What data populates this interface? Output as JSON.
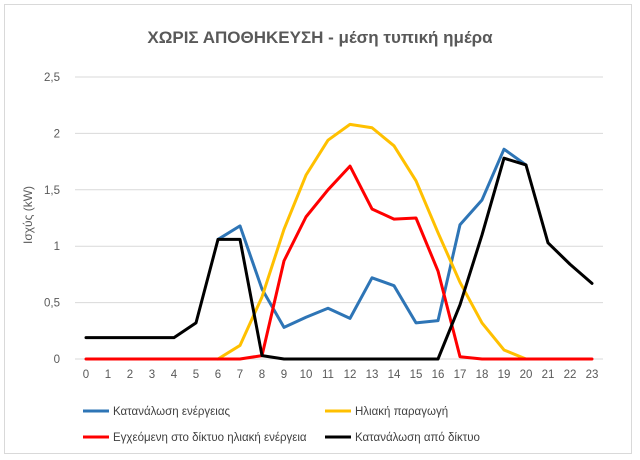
{
  "chart_data": {
    "type": "line",
    "title": "ΧΩΡΙΣ ΑΠΟΘΗΚΕΥΣΗ - μέση τυπική ημέρα",
    "ylabel": "Ισχύς (kW)",
    "xlabel": "",
    "ylim": [
      0,
      2.5
    ],
    "yticks": [
      "0",
      "0,5",
      "1",
      "1,5",
      "2",
      "2,5"
    ],
    "ytick_values": [
      0,
      0.5,
      1,
      1.5,
      2,
      2.5
    ],
    "x": [
      0,
      1,
      2,
      3,
      4,
      5,
      6,
      7,
      8,
      9,
      10,
      11,
      12,
      13,
      14,
      15,
      16,
      17,
      18,
      19,
      20,
      21,
      22,
      23
    ],
    "grid": "horizontal",
    "legend_position": "bottom",
    "series": [
      {
        "name": "Κατανάλωση ενέργειας",
        "color": "#2e75b6",
        "x": [
          6,
          7,
          8,
          9,
          10,
          11,
          12,
          13,
          14,
          15,
          16,
          17,
          18,
          19,
          20
        ],
        "values": [
          1.06,
          1.18,
          0.62,
          0.28,
          0.37,
          0.45,
          0.36,
          0.72,
          0.65,
          0.32,
          0.34,
          1.19,
          1.41,
          1.86,
          1.72
        ]
      },
      {
        "name": "Ηλιακή παραγωγή",
        "color": "#ffc000",
        "x": [
          6,
          7,
          8,
          9,
          10,
          11,
          12,
          13,
          14,
          15,
          16,
          17,
          18,
          19,
          20
        ],
        "values": [
          0.0,
          0.12,
          0.55,
          1.15,
          1.63,
          1.94,
          2.08,
          2.05,
          1.89,
          1.58,
          1.12,
          0.68,
          0.32,
          0.08,
          0.0
        ]
      },
      {
        "name": "Εγχεόμενη στο δίκτυο ηλιακή ενέργεια",
        "color": "#ff0000",
        "x": [
          0,
          1,
          2,
          3,
          4,
          5,
          6,
          7,
          8,
          9,
          10,
          11,
          12,
          13,
          14,
          15,
          16,
          17,
          18,
          19,
          20,
          21,
          22,
          23
        ],
        "values": [
          0,
          0,
          0,
          0,
          0,
          0,
          0,
          0,
          0.03,
          0.87,
          1.26,
          1.5,
          1.71,
          1.33,
          1.24,
          1.25,
          0.78,
          0.02,
          0,
          0,
          0,
          0,
          0,
          0
        ]
      },
      {
        "name": "Κατανάλωση από δίκτυο",
        "color": "#000000",
        "x": [
          0,
          1,
          2,
          3,
          4,
          5,
          6,
          7,
          8,
          9,
          10,
          11,
          12,
          13,
          14,
          15,
          16,
          17,
          18,
          19,
          20,
          21,
          22,
          23
        ],
        "values": [
          0.19,
          0.19,
          0.19,
          0.19,
          0.19,
          0.32,
          1.06,
          1.06,
          0.03,
          0,
          0,
          0,
          0,
          0,
          0,
          0,
          0,
          0.48,
          1.1,
          1.78,
          1.72,
          1.03,
          0.84,
          0.67
        ]
      }
    ]
  }
}
